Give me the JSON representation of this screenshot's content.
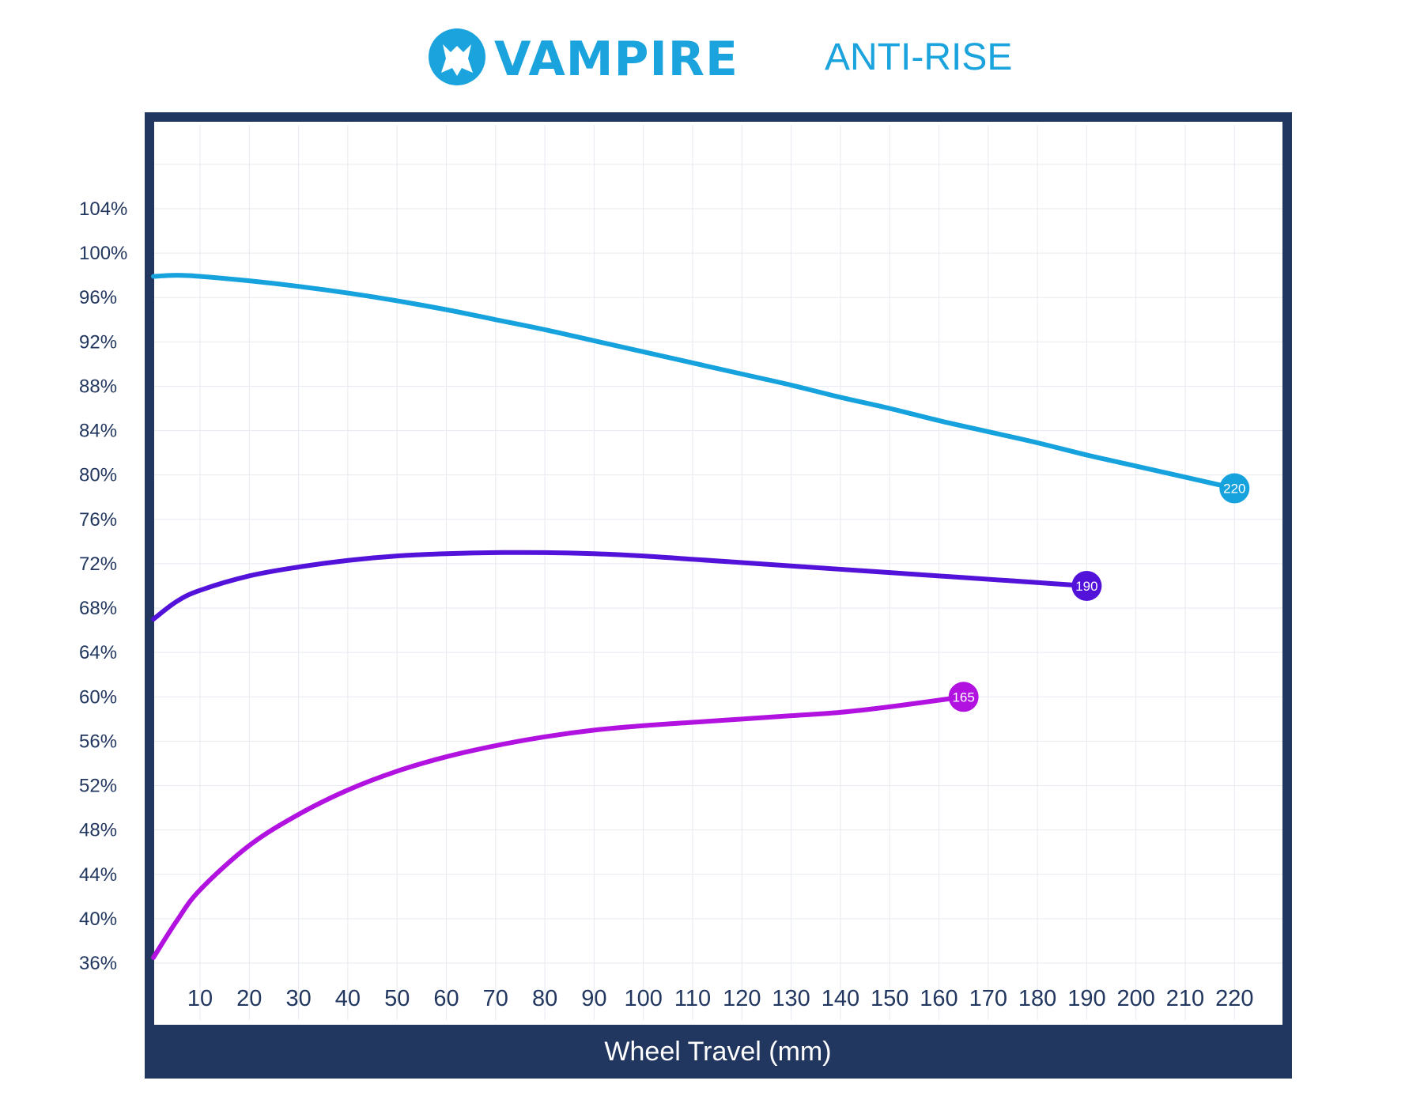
{
  "header": {
    "brand": "VAMPIRE",
    "subtitle": "ANTI-RISE"
  },
  "colors": {
    "frame": "#22375f",
    "brand": "#1aa3dd"
  },
  "chart_data": {
    "type": "line",
    "title": "ANTI-RISE",
    "xlabel": "Wheel Travel (mm)",
    "ylabel": "",
    "xlim": [
      0,
      225
    ],
    "ylim": [
      36,
      108
    ],
    "x_ticks": [
      10,
      20,
      30,
      40,
      50,
      60,
      70,
      80,
      90,
      100,
      110,
      120,
      130,
      140,
      150,
      160,
      170,
      180,
      190,
      200,
      210,
      220
    ],
    "y_ticks": [
      "104%",
      "100%",
      "96%",
      "92%",
      "88%",
      "84%",
      "80%",
      "76%",
      "72%",
      "68%",
      "64%",
      "60%",
      "56%",
      "52%",
      "48%",
      "44%",
      "40%",
      "36%"
    ],
    "grid": true,
    "series": [
      {
        "end_label": "220",
        "color": "#16a2dd",
        "x": [
          0,
          5,
          10,
          20,
          30,
          40,
          50,
          60,
          70,
          80,
          90,
          100,
          110,
          120,
          130,
          140,
          150,
          160,
          170,
          180,
          190,
          200,
          210,
          220
        ],
        "y": [
          97.9,
          98.0,
          97.9,
          97.5,
          97.0,
          96.4,
          95.7,
          94.9,
          94.0,
          93.1,
          92.1,
          91.1,
          90.1,
          89.1,
          88.1,
          87.0,
          86.0,
          84.9,
          83.9,
          82.9,
          81.8,
          80.8,
          79.8,
          78.8
        ]
      },
      {
        "end_label": "190",
        "color": "#5312d9",
        "x": [
          0,
          5,
          10,
          20,
          30,
          40,
          50,
          60,
          70,
          80,
          90,
          100,
          110,
          120,
          130,
          140,
          150,
          160,
          170,
          180,
          190
        ],
        "y": [
          67.0,
          68.6,
          69.6,
          70.9,
          71.7,
          72.3,
          72.7,
          72.9,
          73.0,
          73.0,
          72.9,
          72.7,
          72.4,
          72.1,
          71.8,
          71.5,
          71.2,
          70.9,
          70.6,
          70.3,
          70.0
        ]
      },
      {
        "end_label": "165",
        "color": "#b112e0",
        "x": [
          0,
          5,
          10,
          20,
          30,
          40,
          50,
          60,
          70,
          80,
          90,
          100,
          110,
          120,
          130,
          140,
          150,
          165
        ],
        "y": [
          36.5,
          39.8,
          42.6,
          46.6,
          49.4,
          51.6,
          53.3,
          54.6,
          55.6,
          56.4,
          57.0,
          57.4,
          57.7,
          58.0,
          58.3,
          58.6,
          59.1,
          60.0
        ]
      }
    ]
  }
}
